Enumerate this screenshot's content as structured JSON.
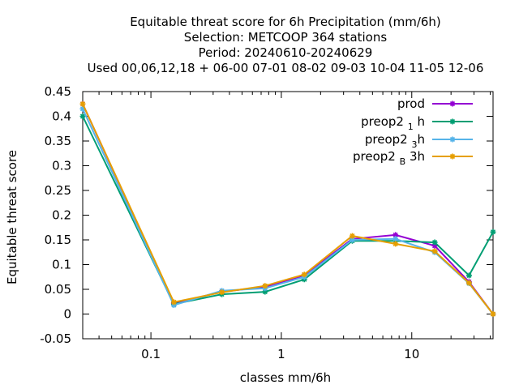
{
  "chart_data": {
    "type": "line",
    "title_lines": [
      "Equitable threat score  for 6h Precipitation (mm/6h)",
      "Selection: METCOOP    364 stations",
      "Period: 20240610-20240629",
      "Used  00,06,12,18 + 06-00 07-01 08-02 09-03 10-04 11-05 12-06"
    ],
    "xlabel": "classes mm/6h",
    "ylabel": "Equitable threat score",
    "x_scale": "log",
    "xlim": [
      0.03,
      42
    ],
    "ylim": [
      -0.05,
      0.45
    ],
    "x_ticks": [
      {
        "value": 0.1,
        "label": "0.1"
      },
      {
        "value": 1,
        "label": "1"
      },
      {
        "value": 10,
        "label": "10"
      }
    ],
    "y_ticks": [
      {
        "value": 0.45,
        "label": "0.45"
      },
      {
        "value": 0.4,
        "label": "0.4"
      },
      {
        "value": 0.35,
        "label": "0.35"
      },
      {
        "value": 0.3,
        "label": "0.3"
      },
      {
        "value": 0.25,
        "label": "0.25"
      },
      {
        "value": 0.2,
        "label": "0.2"
      },
      {
        "value": 0.15,
        "label": "0.15"
      },
      {
        "value": 0.1,
        "label": "0.1"
      },
      {
        "value": 0.05,
        "label": "0.05"
      },
      {
        "value": 0,
        "label": "0"
      },
      {
        "value": -0.05,
        "label": "-0.05"
      }
    ],
    "grid": false,
    "legend_position": "top-right",
    "x": [
      0.03,
      0.15,
      0.35,
      0.75,
      1.5,
      3.5,
      7.5,
      15,
      27.5,
      42
    ],
    "series": [
      {
        "name": "prod",
        "name_base": "prod",
        "name_sub": "",
        "name_suffix": "",
        "color": "#9400d3",
        "values": [
          0.425,
          0.022,
          0.045,
          0.055,
          0.078,
          0.152,
          0.16,
          0.138,
          0.065,
          0.0
        ]
      },
      {
        "name": "preop2 1 h",
        "name_base": "preop2 ",
        "name_sub": "1",
        "name_suffix": " h",
        "color": "#009e73",
        "values": [
          0.4,
          0.02,
          0.04,
          0.045,
          0.07,
          0.148,
          0.148,
          0.145,
          0.078,
          0.166
        ]
      },
      {
        "name": "preop2 3 h",
        "name_base": "preop2 ",
        "name_sub": "3",
        "name_suffix": "h",
        "color": "#56b4e9",
        "values": [
          0.415,
          0.018,
          0.047,
          0.052,
          0.075,
          0.15,
          0.152,
          0.125,
          0.062,
          0.0
        ]
      },
      {
        "name": "preop2 B 3h",
        "name_base": "preop2 ",
        "name_sub": "B",
        "name_suffix": " 3h",
        "color": "#e69f00",
        "values": [
          0.425,
          0.024,
          0.044,
          0.057,
          0.08,
          0.158,
          0.142,
          0.127,
          0.063,
          0.0
        ]
      }
    ]
  }
}
